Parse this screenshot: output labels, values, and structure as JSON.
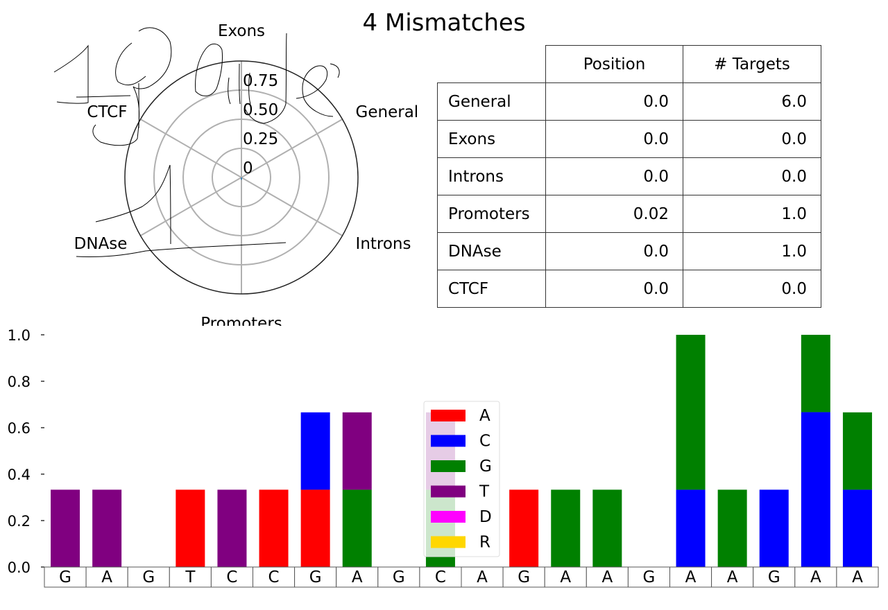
{
  "title": "4 Mismatches",
  "radar": {
    "axes": [
      "Exons",
      "General",
      "Introns",
      "Promoters",
      "DNAse",
      "CTCF"
    ],
    "ticks": [
      "0",
      "0.25",
      "0.50",
      "0.75"
    ],
    "tick_values": [
      0,
      0.25,
      0.5,
      0.75
    ],
    "rmax": 1.0,
    "values": [
      0.0,
      0.0,
      0.0,
      0.02,
      0.0,
      0.0
    ],
    "series_color": "#1f77b4",
    "annotation": "handwritten scribbles drawn over the radar plot"
  },
  "table": {
    "columns": [
      "Position",
      "# Targets"
    ],
    "rows": [
      {
        "label": "General",
        "position": "0.0",
        "targets": "6.0"
      },
      {
        "label": "Exons",
        "position": "0.0",
        "targets": "0.0"
      },
      {
        "label": "Introns",
        "position": "0.0",
        "targets": "0.0"
      },
      {
        "label": "Promoters",
        "position": "0.02",
        "targets": "1.0"
      },
      {
        "label": "DNAse",
        "position": "0.0",
        "targets": "1.0"
      },
      {
        "label": "CTCF",
        "position": "0.0",
        "targets": "0.0"
      }
    ]
  },
  "chart_data": {
    "type": "bar",
    "stacked": true,
    "categories": [
      "G",
      "A",
      "G",
      "T",
      "C",
      "C",
      "G",
      "A",
      "G",
      "C",
      "A",
      "G",
      "A",
      "A",
      "G",
      "A",
      "A",
      "G",
      "A",
      "A"
    ],
    "ylim": [
      0,
      1.0
    ],
    "yticks": [
      "0.0",
      "0.2",
      "0.4",
      "0.6",
      "0.8",
      "1.0"
    ],
    "ytick_values": [
      0,
      0.2,
      0.4,
      0.6,
      0.8,
      1.0
    ],
    "legend_position": "center",
    "series": [
      {
        "name": "A",
        "color": "#ff0000",
        "values": [
          0,
          0,
          0,
          0.333,
          0,
          0.333,
          0.333,
          0,
          0,
          0,
          0,
          0.333,
          0,
          0,
          0,
          0,
          0,
          0,
          0,
          0
        ]
      },
      {
        "name": "C",
        "color": "#0000ff",
        "values": [
          0,
          0,
          0,
          0,
          0,
          0,
          0.333,
          0,
          0,
          0,
          0,
          0,
          0,
          0,
          0,
          0.333,
          0,
          0.333,
          0.667,
          0.333
        ]
      },
      {
        "name": "G",
        "color": "#008000",
        "values": [
          0,
          0,
          0,
          0,
          0,
          0,
          0,
          0.333,
          0,
          0.333,
          0,
          0,
          0.333,
          0.333,
          0,
          0.667,
          0.333,
          0,
          0.333,
          0.333
        ]
      },
      {
        "name": "T",
        "color": "#800080",
        "values": [
          0.333,
          0.333,
          0,
          0,
          0.333,
          0,
          0,
          0.333,
          0,
          0.333,
          0,
          0,
          0,
          0,
          0,
          0,
          0,
          0,
          0,
          0
        ]
      },
      {
        "name": "D",
        "color": "#ff00ff",
        "values": [
          0,
          0,
          0,
          0,
          0,
          0,
          0,
          0,
          0,
          0,
          0,
          0,
          0,
          0,
          0,
          0,
          0,
          0,
          0,
          0
        ]
      },
      {
        "name": "R",
        "color": "#ffd700",
        "values": [
          0,
          0,
          0,
          0,
          0,
          0,
          0,
          0,
          0,
          0,
          0,
          0,
          0,
          0,
          0,
          0,
          0,
          0,
          0,
          0
        ]
      }
    ]
  }
}
